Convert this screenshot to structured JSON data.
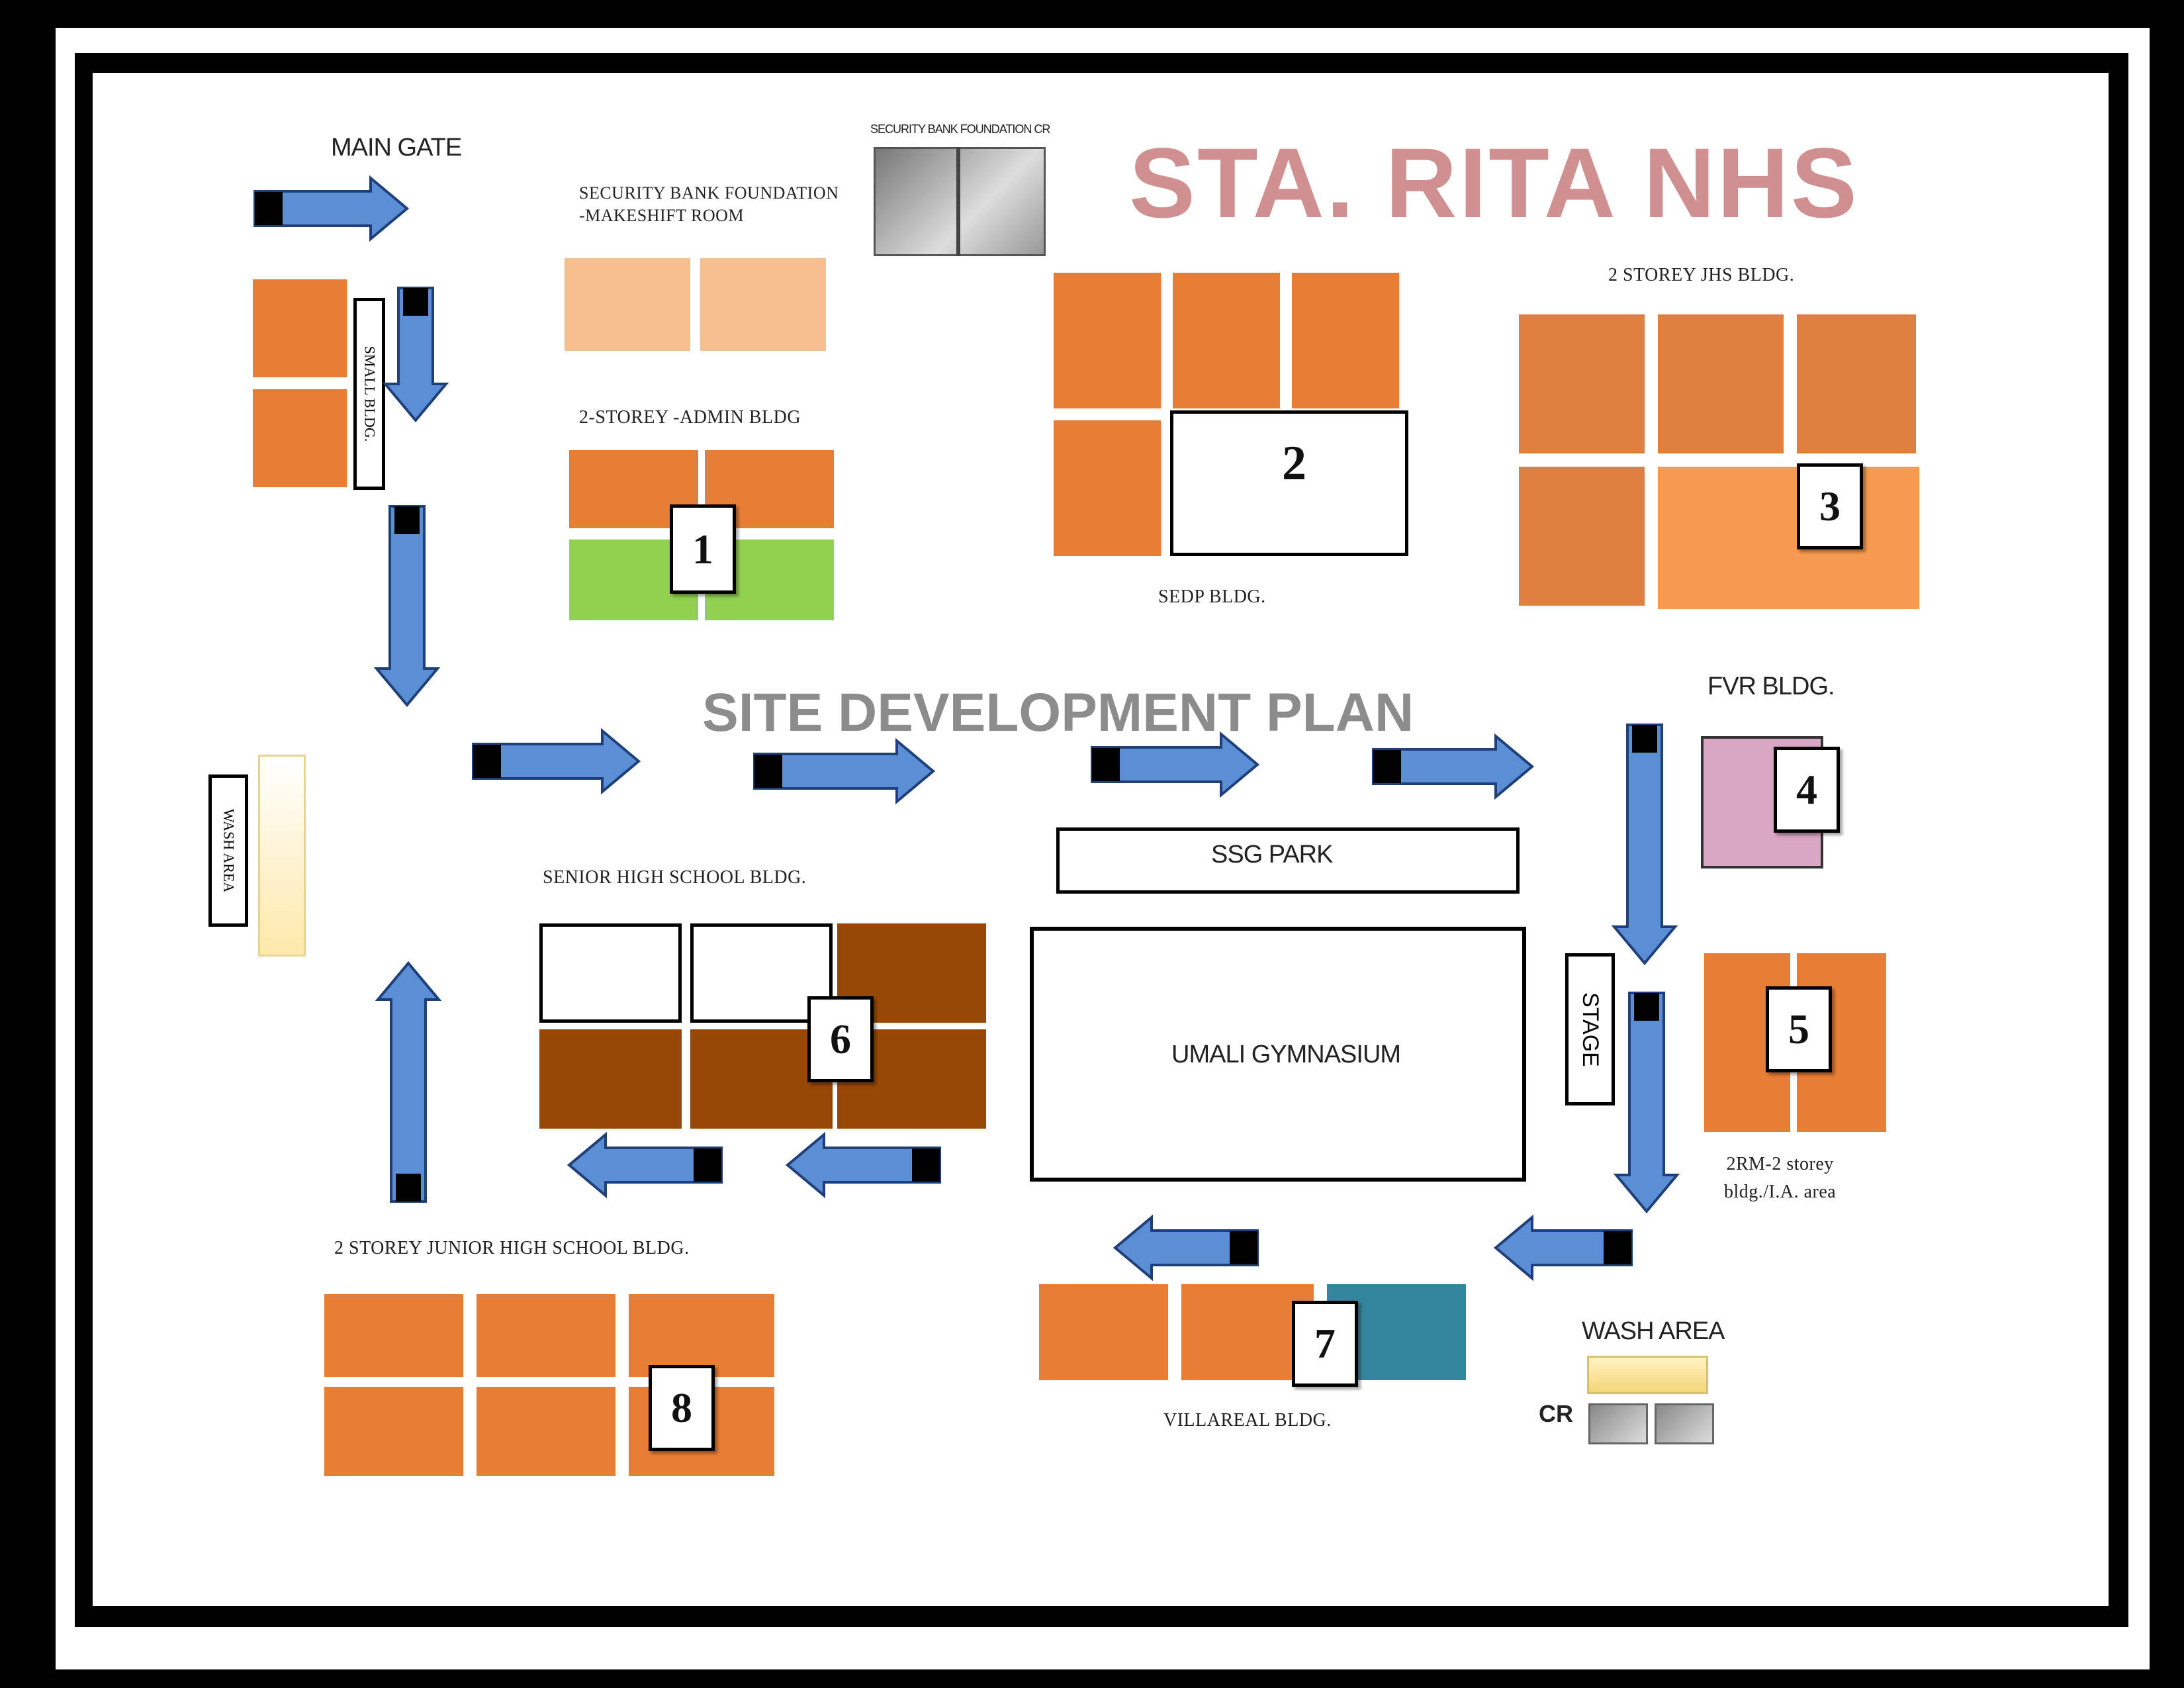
{
  "title": "STA. RITA NHS",
  "subtitle": "SITE DEVELOPMENT PLAN",
  "labels": {
    "main_gate": "MAIN GATE",
    "security_bank_cr": "SECURITY BANK FOUNDATION CR",
    "security_bank_room": "SECURITY BANK FOUNDATION\n-MAKESHIFT ROOM",
    "admin_bldg": "2-STOREY -ADMIN  BLDG",
    "sedp_bldg": "SEDP BLDG.",
    "jhs_2storey": "2 STOREY JHS BLDG.",
    "fvr_bldg": "FVR BLDG.",
    "ssg_park": "SSG PARK",
    "senior_high": "SENIOR HIGH SCHOOL BLDG.",
    "gym": "UMALI GYMNASIUM",
    "stage": "STAGE",
    "two_rm": "2RM-2 storey\nbldg./I.A. area",
    "jhs_junior": "2 STOREY JUNIOR HIGH SCHOOL BLDG.",
    "villareal": "VILLAREAL BLDG.",
    "wash_area_right": "WASH AREA",
    "cr": "CR",
    "wash_area_left": "WASH AREA",
    "small_bldg": "SMALL BLDG."
  },
  "building_numbers": [
    "1",
    "2",
    "3",
    "4",
    "5",
    "6",
    "7",
    "8"
  ],
  "colors": {
    "orange": "#e87d35",
    "light_orange": "#f7be8f",
    "green": "#92d050",
    "brown": "#984806",
    "pink": "#d8a7c4",
    "teal": "#31859c",
    "arrow": "#5a8fd6",
    "title": "#d09090"
  }
}
